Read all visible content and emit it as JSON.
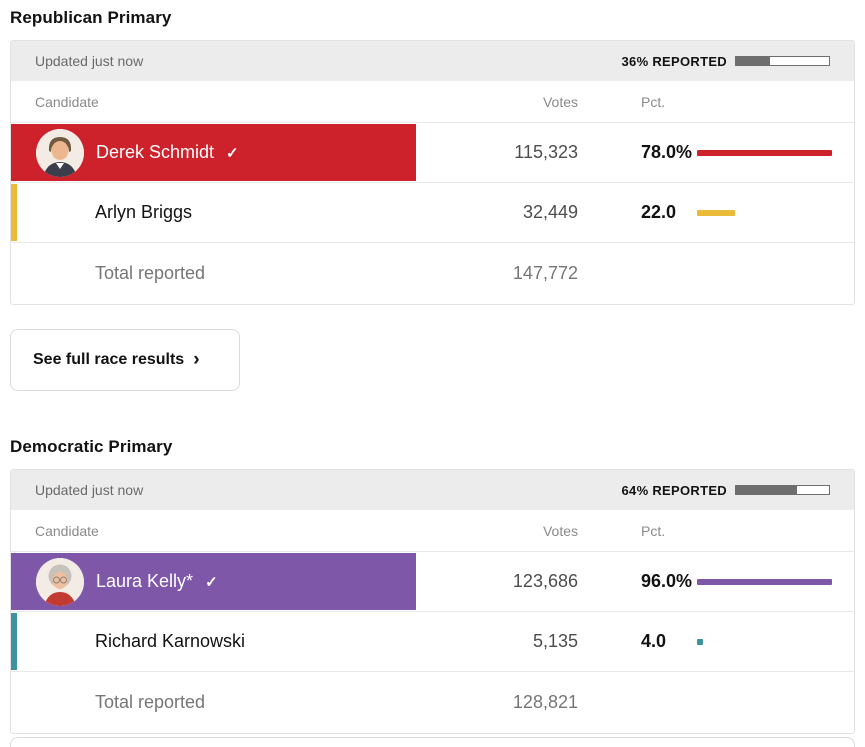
{
  "ui": {
    "progress_fill_color": "#6e6e6e",
    "status_bar_bg": "#ececec"
  },
  "races": [
    {
      "title": "Republican Primary",
      "status": {
        "updated": "Updated just now",
        "reported_label": "36% REPORTED",
        "reported_pct": 36
      },
      "columns": {
        "candidate": "Candidate",
        "votes": "Votes",
        "pct": "Pct."
      },
      "candidates": [
        {
          "name": "Derek Schmidt",
          "winner_check": "✓",
          "votes": "115,323",
          "pct": "78.0%",
          "pct_value": 78,
          "color": "#cd212c",
          "is_leader": true,
          "avatar_variant": "male"
        },
        {
          "name": "Arlyn Briggs",
          "votes": "32,449",
          "pct": "22.0",
          "pct_value": 22,
          "color": "#e9bb39",
          "is_leader": false
        }
      ],
      "total": {
        "label": "Total reported",
        "votes": "147,772"
      },
      "button_label": "See full race results",
      "button_chevron": "›"
    },
    {
      "title": "Democratic Primary",
      "status": {
        "updated": "Updated just now",
        "reported_label": "64% REPORTED",
        "reported_pct": 64
      },
      "columns": {
        "candidate": "Candidate",
        "votes": "Votes",
        "pct": "Pct."
      },
      "candidates": [
        {
          "name": "Laura Kelly*",
          "winner_check": "✓",
          "votes": "123,686",
          "pct": "96.0%",
          "pct_value": 96,
          "color": "#7f57a9",
          "is_leader": true,
          "avatar_variant": "female"
        },
        {
          "name": "Richard Karnowski",
          "votes": "5,135",
          "pct": "4.0",
          "pct_value": 4,
          "color": "#3b93a1",
          "is_leader": false
        }
      ],
      "total": {
        "label": "Total reported",
        "votes": "128,821"
      },
      "has_next_sliver": true
    }
  ]
}
